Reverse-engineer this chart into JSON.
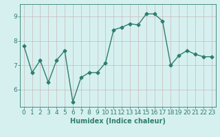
{
  "x": [
    0,
    1,
    2,
    3,
    4,
    5,
    6,
    7,
    8,
    9,
    10,
    11,
    12,
    13,
    14,
    15,
    16,
    17,
    18,
    19,
    20,
    21,
    22,
    23
  ],
  "y": [
    7.8,
    6.7,
    7.2,
    6.3,
    7.2,
    7.6,
    5.5,
    6.5,
    6.7,
    6.7,
    7.1,
    8.45,
    8.55,
    8.7,
    8.65,
    9.1,
    9.1,
    8.8,
    7.0,
    7.4,
    7.6,
    7.45,
    7.35,
    7.35
  ],
  "line_color": "#2e7d6e",
  "marker": "D",
  "marker_size": 2.5,
  "bg_color": "#d6f0f0",
  "grid_color": "#c8b8b8",
  "xlabel": "Humidex (Indice chaleur)",
  "xlim": [
    -0.5,
    23.5
  ],
  "ylim": [
    5.3,
    9.5
  ],
  "yticks": [
    6,
    7,
    8,
    9
  ],
  "xticks": [
    0,
    1,
    2,
    3,
    4,
    5,
    6,
    7,
    8,
    9,
    10,
    11,
    12,
    13,
    14,
    15,
    16,
    17,
    18,
    19,
    20,
    21,
    22,
    23
  ],
  "xlabel_fontsize": 7,
  "tick_fontsize": 6.5,
  "line_width": 1.0,
  "fig_bg_color": "#d6f0f0"
}
